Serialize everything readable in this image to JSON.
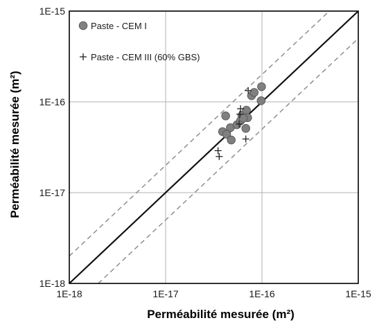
{
  "chart_data": {
    "type": "scatter",
    "xscale": "log",
    "yscale": "log",
    "xlim": [
      1e-18,
      1e-15
    ],
    "ylim": [
      1e-18,
      1e-15
    ],
    "grid": true,
    "xlabel": "Perméabilité mesurée (m²)",
    "ylabel": "Perméabilité mesurée (m²)",
    "x_ticks": [
      {
        "value": 1e-18,
        "label": "1E-18"
      },
      {
        "value": 1e-17,
        "label": "1E-17"
      },
      {
        "value": 1e-16,
        "label": "1E-16"
      },
      {
        "value": 1e-15,
        "label": "1E-15"
      }
    ],
    "y_ticks": [
      {
        "value": 1e-18,
        "label": "1E-18"
      },
      {
        "value": 1e-17,
        "label": "1E-17"
      },
      {
        "value": 1e-16,
        "label": "1E-16"
      },
      {
        "value": 1e-15,
        "label": "1E-15"
      }
    ],
    "legend_position": "top-left",
    "reference_lines": [
      {
        "style": "solid",
        "color": "#111111",
        "factor": 1,
        "points": [
          [
            1e-18,
            1e-18
          ],
          [
            1e-15,
            1e-15
          ]
        ]
      },
      {
        "style": "dashed",
        "color": "#888888",
        "factor": 2,
        "points": [
          [
            1e-18,
            2e-18
          ],
          [
            5e-16,
            1e-15
          ]
        ]
      },
      {
        "style": "dashed",
        "color": "#888888",
        "factor": 0.5,
        "points": [
          [
            2e-18,
            1e-18
          ],
          [
            1e-15,
            5e-16
          ]
        ]
      }
    ],
    "series": [
      {
        "name": "Paste - CEM I",
        "marker": "circle",
        "color": "#808080",
        "points": [
          [
            4.2e-17,
            7e-17
          ],
          [
            6.2e-17,
            7.1e-17
          ],
          [
            6.9e-17,
            8.1e-17
          ],
          [
            7.8e-17,
            1.17e-16
          ],
          [
            8.3e-17,
            1.27e-16
          ],
          [
            9.8e-17,
            1.03e-16
          ],
          [
            9.9e-17,
            1.47e-16
          ],
          [
            7.1e-17,
            6.7e-17
          ],
          [
            3.9e-17,
            4.7e-17
          ],
          [
            4.7e-17,
            5.2e-17
          ],
          [
            5.5e-17,
            5.6e-17
          ],
          [
            6e-17,
            6.2e-17
          ],
          [
            6.4e-17,
            6.6e-17
          ],
          [
            4.3e-17,
            4.4e-17
          ],
          [
            4.8e-17,
            3.8e-17
          ],
          [
            6.8e-17,
            5.1e-17
          ]
        ]
      },
      {
        "name": "Paste - CEM III (60% GBS)",
        "marker": "plus",
        "color": "#222222",
        "points": [
          [
            7.2e-17,
            1.33e-16
          ],
          [
            6e-17,
            8.4e-17
          ],
          [
            5.9e-17,
            7.3e-17
          ],
          [
            5.8e-17,
            5.7e-17
          ],
          [
            3.5e-17,
            2.9e-17
          ],
          [
            3.6e-17,
            2.5e-17
          ],
          [
            6.8e-17,
            3.9e-17
          ]
        ]
      }
    ]
  }
}
